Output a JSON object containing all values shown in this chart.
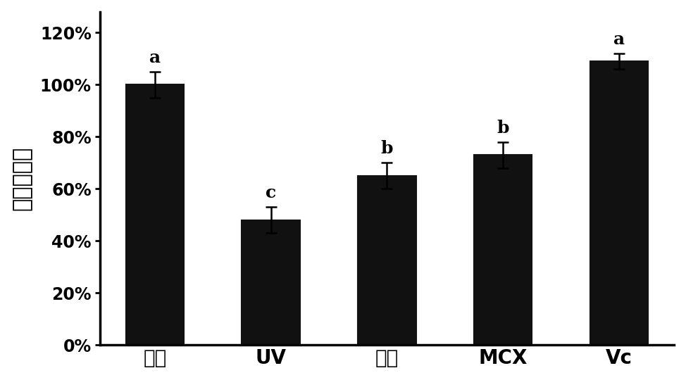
{
  "categories": [
    "对照",
    "UV",
    "多糖",
    "MCX",
    "Vc"
  ],
  "values": [
    1.0,
    0.48,
    0.65,
    0.73,
    1.09
  ],
  "errors": [
    0.05,
    0.05,
    0.05,
    0.05,
    0.03
  ],
  "labels": [
    "a",
    "c",
    "b",
    "b",
    "a"
  ],
  "bar_color": "#111111",
  "ylabel": "细胞存活率",
  "ylim": [
    0,
    1.28
  ],
  "yticks": [
    0.0,
    0.2,
    0.4,
    0.6,
    0.8,
    1.0,
    1.2
  ],
  "ytick_labels": [
    "0%",
    "20%",
    "40%",
    "60%",
    "80%",
    "100%",
    "120%"
  ],
  "bar_width": 0.5,
  "background_color": "#ffffff",
  "ylabel_fontsize": 22,
  "tick_fontsize": 17,
  "label_fontsize": 18,
  "xtick_fontsize": 20
}
